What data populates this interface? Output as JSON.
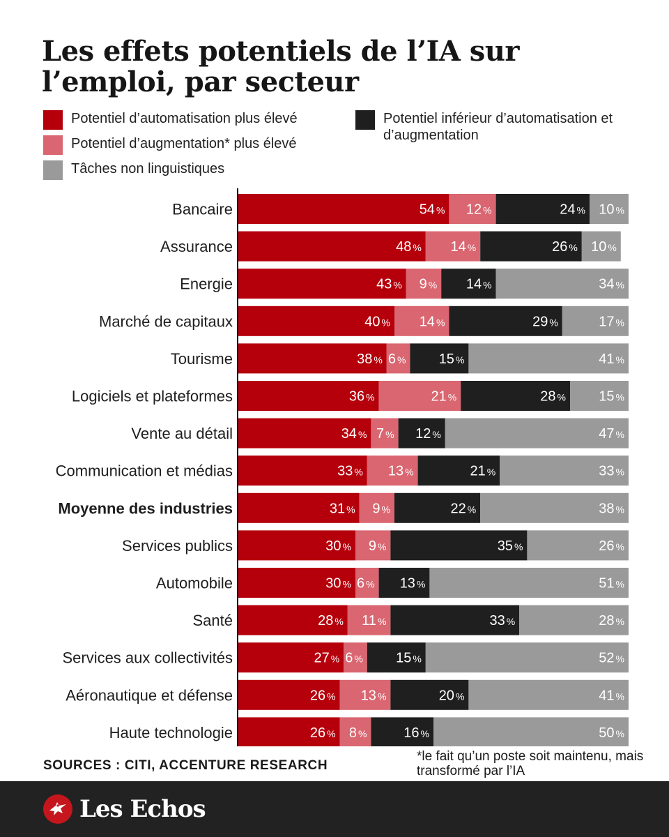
{
  "title": "Les effets potentiels de l’IA sur l’emploi, par secteur",
  "legend": [
    {
      "label": "Potentiel d’automatisation plus élevé",
      "color": "#b5000c"
    },
    {
      "label": "Potentiel d’augmentation* plus élevé",
      "color": "#d96670"
    },
    {
      "label": "Tâches non linguistiques",
      "color": "#9a9a9a"
    },
    {
      "label": "Potentiel inférieur d’automatisation et d’augmentation",
      "color": "#1f1f1f"
    }
  ],
  "chart_data": {
    "type": "bar",
    "orientation": "horizontal",
    "stacked": true,
    "stack_order": [
      "Potentiel d’automatisation plus élevé",
      "Potentiel d’augmentation* plus élevé",
      "Potentiel inférieur d’automatisation et d’augmentation",
      "Tâches non linguistiques"
    ],
    "unit": "%",
    "categories": [
      "Bancaire",
      "Assurance",
      "Energie",
      "Marché de capitaux",
      "Tourisme",
      "Logiciels et plateformes",
      "Vente au détail",
      "Communication et médias",
      "Moyenne des industries",
      "Services publics",
      "Automobile",
      "Santé",
      "Services aux collectivités",
      "Aéronautique et défense",
      "Haute technologie"
    ],
    "highlighted_category": "Moyenne des industries",
    "series": [
      {
        "name": "Potentiel d’automatisation plus élevé",
        "color": "#b5000c",
        "values": [
          54,
          48,
          43,
          40,
          38,
          36,
          34,
          33,
          31,
          30,
          30,
          28,
          27,
          26,
          26
        ]
      },
      {
        "name": "Potentiel d’augmentation* plus élevé",
        "color": "#d96670",
        "values": [
          12,
          14,
          9,
          14,
          6,
          21,
          7,
          13,
          9,
          9,
          6,
          11,
          6,
          13,
          8
        ]
      },
      {
        "name": "Potentiel inférieur d’automatisation et d’augmentation",
        "color": "#1f1f1f",
        "values": [
          24,
          26,
          14,
          29,
          15,
          28,
          12,
          21,
          22,
          35,
          13,
          33,
          15,
          20,
          16
        ]
      },
      {
        "name": "Tâches non linguistiques",
        "color": "#9a9a9a",
        "values": [
          10,
          10,
          34,
          17,
          41,
          15,
          47,
          33,
          38,
          26,
          51,
          28,
          52,
          41,
          50
        ]
      }
    ],
    "xlim": [
      0,
      100
    ],
    "grid": false,
    "legend_position": "top"
  },
  "sources": "SOURCES : CITI, ACCENTURE RESEARCH",
  "footnote": "*le fait qu’un poste soit maintenu, mais transformé par l’IA",
  "brand": "Les Echos",
  "logo_icon": "les-echos-bird-icon"
}
